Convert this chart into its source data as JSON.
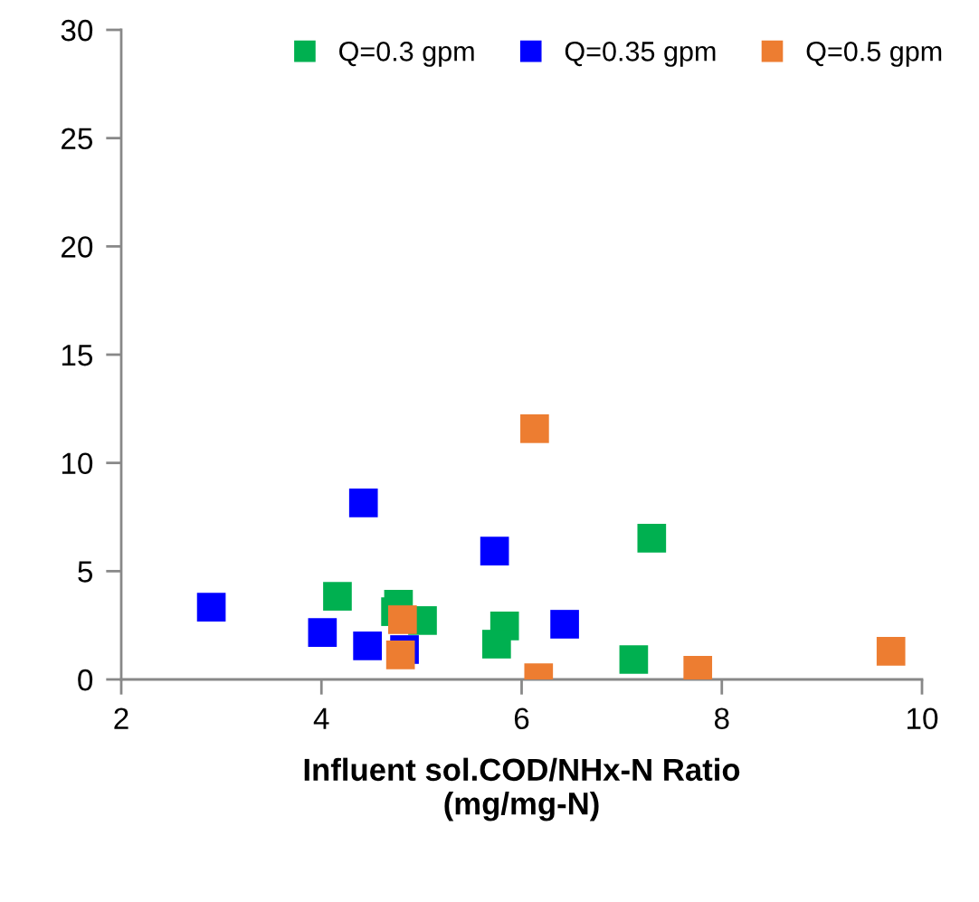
{
  "chart_data": {
    "type": "scatter",
    "xlabel": "Influent sol.COD/NHx-N Ratio\n(mg/mg-N)",
    "xlim": [
      2,
      10
    ],
    "xticks": [
      2,
      4,
      6,
      8,
      10
    ],
    "ylim": [
      0,
      30
    ],
    "yticks": [
      0,
      5,
      10,
      15,
      20,
      25,
      30
    ],
    "marker": "square",
    "legend": "top right",
    "grid": false,
    "series": [
      {
        "name": "Q=0.3 gpm",
        "color": "#00b050",
        "x": [
          4.16,
          4.77,
          4.74,
          5.01,
          5.83,
          5.75,
          7.3,
          7.12
        ],
        "values": [
          3.84,
          3.47,
          3.13,
          2.72,
          2.47,
          1.63,
          6.52,
          0.92
        ]
      },
      {
        "name": "Q=0.35 gpm",
        "color": "#0000ff",
        "x": [
          2.9,
          4.01,
          4.42,
          4.46,
          4.83,
          5.73,
          6.43
        ],
        "values": [
          3.34,
          2.17,
          8.15,
          1.55,
          1.38,
          5.93,
          2.55
        ]
      },
      {
        "name": "Q=0.5 gpm",
        "color": "#ed7d31",
        "x": [
          6.13,
          4.81,
          4.79,
          6.17,
          7.76,
          9.69
        ],
        "values": [
          11.58,
          2.76,
          1.13,
          0.08,
          0.42,
          1.3
        ]
      }
    ]
  }
}
